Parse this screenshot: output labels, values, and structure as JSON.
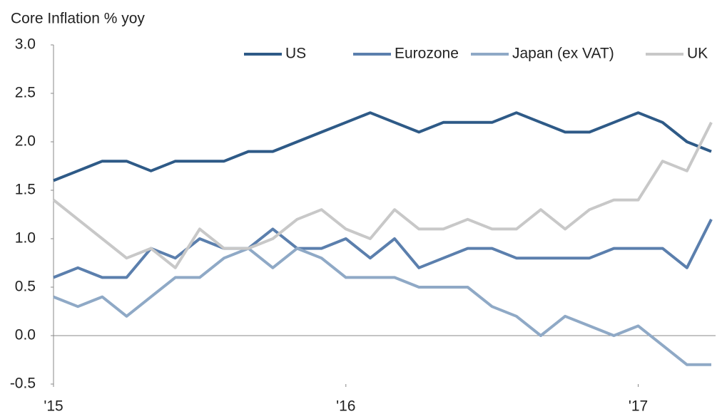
{
  "chart_data": {
    "type": "line",
    "ylabel": "Core Inflation % yoy",
    "x": [
      0,
      1,
      2,
      3,
      4,
      5,
      6,
      7,
      8,
      9,
      10,
      11,
      12,
      13,
      14,
      15,
      16,
      17,
      18,
      19,
      20,
      21,
      22,
      23,
      24,
      25,
      26,
      27
    ],
    "series": [
      {
        "name": "US",
        "color": "#2e5a87",
        "values": [
          1.6,
          1.7,
          1.8,
          1.8,
          1.7,
          1.8,
          1.8,
          1.8,
          1.9,
          1.9,
          2.0,
          2.1,
          2.2,
          2.3,
          2.2,
          2.1,
          2.2,
          2.2,
          2.2,
          2.3,
          2.2,
          2.1,
          2.1,
          2.2,
          2.3,
          2.2,
          2.0,
          1.9
        ]
      },
      {
        "name": "Eurozone",
        "color": "#5b7fad",
        "values": [
          0.6,
          0.7,
          0.6,
          0.6,
          0.9,
          0.8,
          1.0,
          0.9,
          0.9,
          1.1,
          0.9,
          0.9,
          1.0,
          0.8,
          1.0,
          0.7,
          0.8,
          0.9,
          0.9,
          0.8,
          0.8,
          0.8,
          0.8,
          0.9,
          0.9,
          0.9,
          0.7,
          1.2
        ]
      },
      {
        "name": "Japan (ex VAT)",
        "color": "#8fa9c6",
        "values": [
          0.4,
          0.3,
          0.4,
          0.2,
          0.4,
          0.6,
          0.6,
          0.8,
          0.9,
          0.7,
          0.9,
          0.8,
          0.6,
          0.6,
          0.6,
          0.5,
          0.5,
          0.5,
          0.3,
          0.2,
          0.0,
          0.2,
          0.1,
          0.0,
          0.1,
          -0.1,
          -0.3,
          -0.3
        ]
      },
      {
        "name": "UK",
        "color": "#c8c8c8",
        "values": [
          1.4,
          1.2,
          1.0,
          0.8,
          0.9,
          0.7,
          1.1,
          0.9,
          0.9,
          1.0,
          1.2,
          1.3,
          1.1,
          1.0,
          1.3,
          1.1,
          1.1,
          1.2,
          1.1,
          1.1,
          1.3,
          1.1,
          1.3,
          1.4,
          1.4,
          1.8,
          1.7,
          2.2
        ]
      }
    ],
    "xlim": [
      0,
      27
    ],
    "xticks": [
      {
        "value": 0,
        "label": "'15"
      },
      {
        "value": 12,
        "label": "'16"
      },
      {
        "value": 24,
        "label": "'17"
      }
    ],
    "ylim": [
      -0.5,
      3.0
    ],
    "yticks": [
      -0.5,
      {
        "value": 0,
        "label": "0.0"
      },
      0.5,
      {
        "value": 1,
        "label": "1.0"
      },
      1.5,
      {
        "value": 2,
        "label": "2.0"
      },
      2.5,
      {
        "value": 3,
        "label": "3.0"
      }
    ],
    "legend": "top-right"
  }
}
